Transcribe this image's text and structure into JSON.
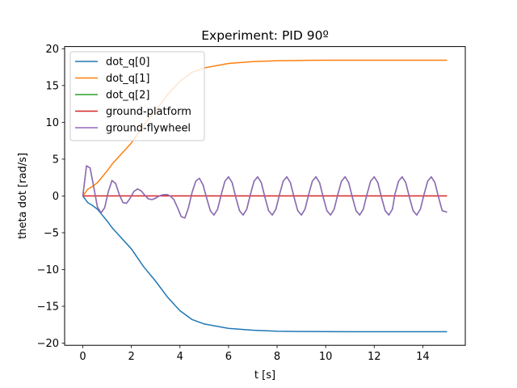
{
  "chart_data": {
    "type": "line",
    "title": "Experiment: PID 90º",
    "xlabel": "t [s]",
    "ylabel": "theta dot [rad/s]",
    "xlim": [
      -0.75,
      15.75
    ],
    "ylim": [
      -20.3,
      20.3
    ],
    "xticks": [
      0,
      2,
      4,
      6,
      8,
      10,
      12,
      14
    ],
    "yticks": [
      -20,
      -15,
      -10,
      -5,
      0,
      5,
      10,
      15,
      20
    ],
    "grid": false,
    "legend_position": "top-left",
    "colors": {
      "dot_q[0]": "#1f77b4",
      "dot_q[1]": "#ff7f0e",
      "dot_q[2]": "#2ca02c",
      "ground-platform": "#d62728",
      "ground-flywheel": "#9467bd"
    },
    "series": [
      {
        "name": "dot_q[0]",
        "x": [
          0,
          0.2,
          0.4,
          0.6,
          0.8,
          1.0,
          1.2,
          1.5,
          2.0,
          2.5,
          3.0,
          3.5,
          4.0,
          4.5,
          5.0,
          6.0,
          7.0,
          8.0,
          9.0,
          10.0,
          11.0,
          12.0,
          13.0,
          14.0,
          15.0
        ],
        "y": [
          0,
          -0.9,
          -1.3,
          -1.8,
          -2.6,
          -3.4,
          -4.3,
          -5.4,
          -7.2,
          -9.6,
          -11.6,
          -13.8,
          -15.6,
          -16.8,
          -17.4,
          -18.0,
          -18.25,
          -18.38,
          -18.42,
          -18.44,
          -18.45,
          -18.45,
          -18.45,
          -18.45,
          -18.45
        ]
      },
      {
        "name": "dot_q[1]",
        "x": [
          0,
          0.2,
          0.4,
          0.6,
          0.8,
          1.0,
          1.2,
          1.5,
          2.0,
          2.5,
          3.0,
          3.5,
          4.0,
          4.5,
          5.0,
          6.0,
          7.0,
          8.0,
          9.0,
          10.0,
          11.0,
          12.0,
          13.0,
          14.0,
          15.0
        ],
        "y": [
          0,
          0.9,
          1.3,
          1.8,
          2.6,
          3.4,
          4.3,
          5.4,
          7.2,
          9.6,
          11.6,
          13.8,
          15.6,
          16.8,
          17.4,
          18.0,
          18.25,
          18.38,
          18.42,
          18.44,
          18.45,
          18.45,
          18.45,
          18.45,
          18.45
        ]
      },
      {
        "name": "dot_q[2]",
        "x": [
          0,
          0.15,
          0.3,
          0.45,
          0.6,
          0.75,
          0.9,
          1.05,
          1.2,
          1.35,
          1.5,
          1.65,
          1.8,
          1.95,
          2.1,
          2.25,
          2.4,
          2.55,
          2.7,
          2.85,
          3.0,
          3.15,
          3.3,
          3.45,
          3.6,
          3.75,
          3.9,
          4.05,
          4.2,
          4.35,
          4.5,
          4.65,
          4.8,
          4.95,
          5.1,
          5.25,
          5.4,
          5.55,
          5.7,
          5.85,
          6.0,
          6.15,
          6.3,
          6.45,
          6.6,
          6.75,
          6.9,
          7.05,
          7.2,
          7.35,
          7.5,
          7.65,
          7.8,
          7.95,
          8.1,
          8.25,
          8.4,
          8.55,
          8.7,
          8.85,
          9.0,
          9.15,
          9.3,
          9.45,
          9.6,
          9.75,
          9.9,
          10.05,
          10.2,
          10.35,
          10.5,
          10.65,
          10.8,
          10.95,
          11.1,
          11.25,
          11.4,
          11.55,
          11.7,
          11.85,
          12.0,
          12.15,
          12.3,
          12.45,
          12.6,
          12.75,
          12.85,
          13.0,
          13.15,
          13.3,
          13.45,
          13.6,
          13.75,
          13.9,
          14.05,
          14.2,
          14.35,
          14.5,
          14.65,
          14.8,
          15.0
        ],
        "y": [
          0,
          4.1,
          3.8,
          1.2,
          -1.5,
          -2.3,
          -1.6,
          0.6,
          2.1,
          1.7,
          0.2,
          -0.9,
          -1.0,
          -0.3,
          0.6,
          0.95,
          0.7,
          0.1,
          -0.4,
          -0.5,
          -0.3,
          0.0,
          0.15,
          0.2,
          0.0,
          -0.5,
          -1.6,
          -2.8,
          -3.0,
          -1.6,
          0.5,
          2.0,
          2.4,
          1.5,
          -0.3,
          -2.0,
          -2.6,
          -1.8,
          0.2,
          2.0,
          2.6,
          1.8,
          -0.2,
          -2.0,
          -2.6,
          -1.8,
          0.2,
          2.0,
          2.6,
          1.8,
          -0.2,
          -2.0,
          -2.6,
          -1.8,
          0.2,
          2.0,
          2.6,
          1.8,
          -0.2,
          -2.0,
          -2.6,
          -1.8,
          0.2,
          2.0,
          2.6,
          1.8,
          -0.2,
          -2.0,
          -2.6,
          -1.8,
          0.2,
          2.0,
          2.6,
          1.8,
          -0.2,
          -2.0,
          -2.6,
          -1.8,
          0.2,
          2.0,
          2.6,
          1.8,
          -0.2,
          -2.0,
          -2.6,
          -1.8,
          0.2,
          2.0,
          2.6,
          1.8,
          -0.2,
          -2.0,
          -2.6,
          -1.8,
          0.2,
          2.0,
          2.6,
          1.8,
          -0.2,
          -2.0,
          -2.2
        ]
      },
      {
        "name": "ground-platform",
        "x": [
          0,
          15
        ],
        "y": [
          0,
          0
        ]
      },
      {
        "name": "ground-flywheel",
        "x": [
          0,
          0.15,
          0.3,
          0.45,
          0.6,
          0.75,
          0.9,
          1.05,
          1.2,
          1.35,
          1.5,
          1.65,
          1.8,
          1.95,
          2.1,
          2.25,
          2.4,
          2.55,
          2.7,
          2.85,
          3.0,
          3.15,
          3.3,
          3.45,
          3.6,
          3.75,
          3.9,
          4.05,
          4.2,
          4.35,
          4.5,
          4.65,
          4.8,
          4.95,
          5.1,
          5.25,
          5.4,
          5.55,
          5.7,
          5.85,
          6.0,
          6.15,
          6.3,
          6.45,
          6.6,
          6.75,
          6.9,
          7.05,
          7.2,
          7.35,
          7.5,
          7.65,
          7.8,
          7.95,
          8.1,
          8.25,
          8.4,
          8.55,
          8.7,
          8.85,
          9.0,
          9.15,
          9.3,
          9.45,
          9.6,
          9.75,
          9.9,
          10.05,
          10.2,
          10.35,
          10.5,
          10.65,
          10.8,
          10.95,
          11.1,
          11.25,
          11.4,
          11.55,
          11.7,
          11.85,
          12.0,
          12.15,
          12.3,
          12.45,
          12.6,
          12.75,
          12.85,
          13.0,
          13.15,
          13.3,
          13.45,
          13.6,
          13.75,
          13.9,
          14.05,
          14.2,
          14.35,
          14.5,
          14.65,
          14.8,
          15.0
        ],
        "y": [
          0,
          4.1,
          3.8,
          1.2,
          -1.5,
          -2.3,
          -1.6,
          0.6,
          2.1,
          1.7,
          0.2,
          -0.9,
          -1.0,
          -0.3,
          0.6,
          0.95,
          0.7,
          0.1,
          -0.4,
          -0.5,
          -0.3,
          0.0,
          0.15,
          0.2,
          0.0,
          -0.5,
          -1.6,
          -2.8,
          -3.0,
          -1.6,
          0.5,
          2.0,
          2.4,
          1.5,
          -0.3,
          -2.0,
          -2.6,
          -1.8,
          0.2,
          2.0,
          2.6,
          1.8,
          -0.2,
          -2.0,
          -2.6,
          -1.8,
          0.2,
          2.0,
          2.6,
          1.8,
          -0.2,
          -2.0,
          -2.6,
          -1.8,
          0.2,
          2.0,
          2.6,
          1.8,
          -0.2,
          -2.0,
          -2.6,
          -1.8,
          0.2,
          2.0,
          2.6,
          1.8,
          -0.2,
          -2.0,
          -2.6,
          -1.8,
          0.2,
          2.0,
          2.6,
          1.8,
          -0.2,
          -2.0,
          -2.6,
          -1.8,
          0.2,
          2.0,
          2.6,
          1.8,
          -0.2,
          -2.0,
          -2.6,
          -1.8,
          0.2,
          2.0,
          2.6,
          1.8,
          -0.2,
          -2.0,
          -2.6,
          -1.8,
          0.2,
          2.0,
          2.6,
          1.8,
          -0.2,
          -2.0,
          -2.2
        ]
      }
    ]
  }
}
